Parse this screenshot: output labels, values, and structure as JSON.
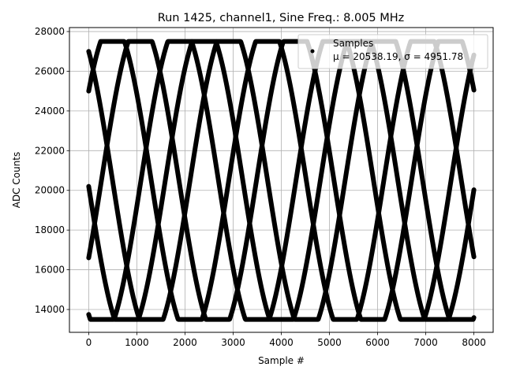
{
  "chart_data": {
    "type": "scatter",
    "title": "Run 1425, channel1, Sine Freq.: 8.005 MHz",
    "xlabel": "Sample #",
    "ylabel": "ADC Counts",
    "xlim": [
      -400,
      8400
    ],
    "ylim": [
      12850,
      28200
    ],
    "xticks": [
      0,
      1000,
      2000,
      3000,
      4000,
      5000,
      6000,
      7000,
      8000
    ],
    "yticks": [
      14000,
      16000,
      18000,
      20000,
      22000,
      24000,
      26000,
      28000
    ],
    "grid": true,
    "legend_position": "top-right",
    "series": [
      {
        "name": "Samples",
        "color": "#000000",
        "marker": "circle",
        "stats_label": "μ = 20538.19, σ = 4951.78",
        "mean": 20538.19,
        "std": 4951.78,
        "sample_range": [
          0,
          8000
        ],
        "clip_range": [
          13500,
          27500
        ],
        "traces": [
          {
            "trace": 1,
            "start_value": 27000,
            "direction": "down"
          },
          {
            "trace": 2,
            "start_value": 25000,
            "direction": "up"
          },
          {
            "trace": 3,
            "start_value": 20200,
            "direction": "down"
          },
          {
            "trace": 4,
            "start_value": 16600,
            "direction": "up"
          },
          {
            "trace": 5,
            "start_value": 13750,
            "direction": "down"
          }
        ]
      }
    ]
  }
}
